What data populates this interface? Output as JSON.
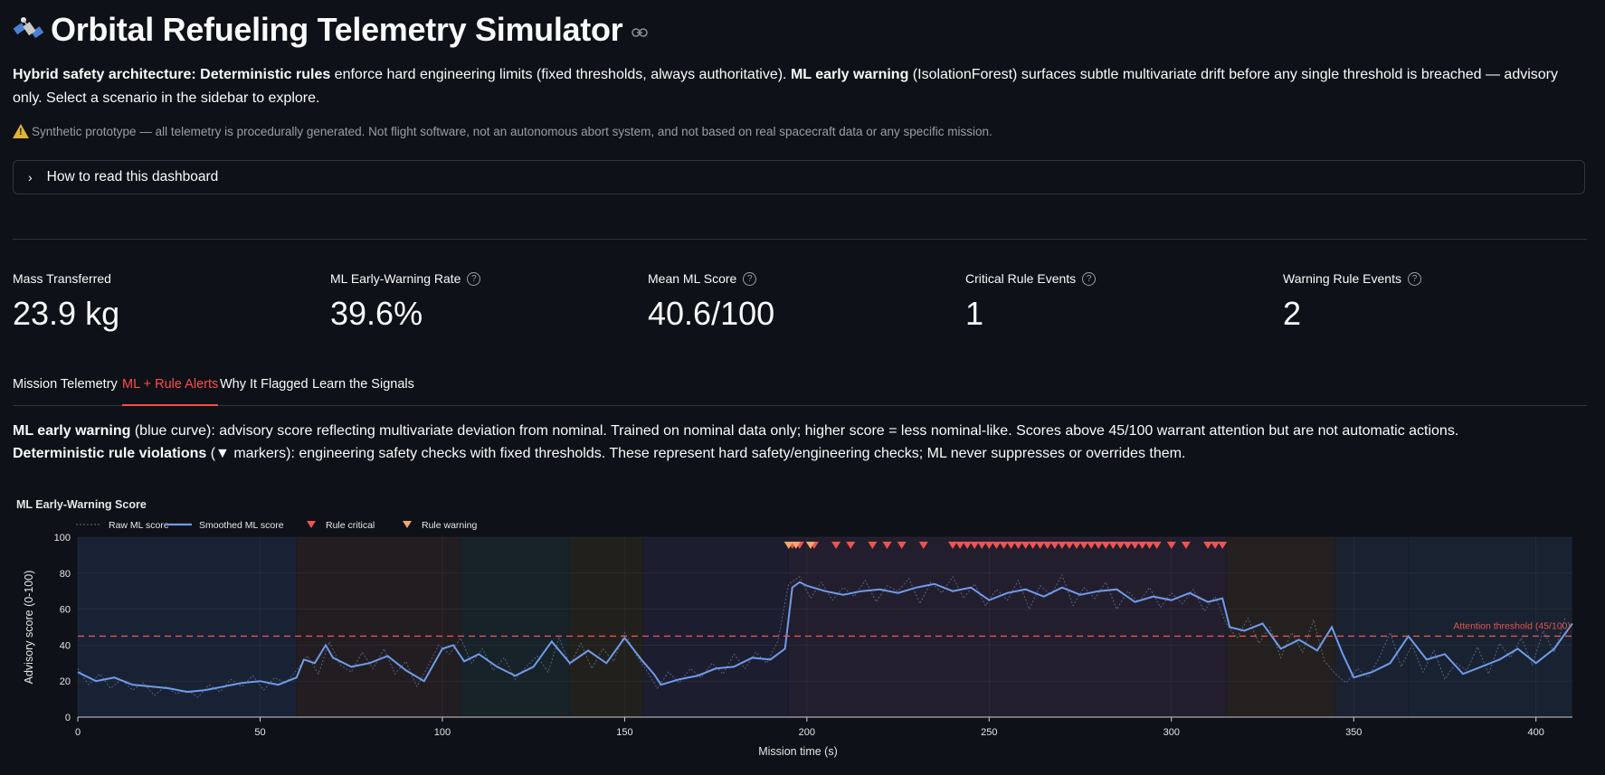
{
  "page": {
    "title": "Orbital Refueling Telemetry Simulator",
    "intro": {
      "b1": "Hybrid safety architecture: Deterministic rules",
      "t1": " enforce hard engineering limits (fixed thresholds, always authoritative). ",
      "b2": "ML early warning",
      "t2": " (IsolationForest) surfaces subtle multivariate drift before any single threshold is breached — advisory only. Select a scenario in the sidebar to explore."
    },
    "disclaimer": "Synthetic prototype — all telemetry is procedurally generated. Not flight software, not an autonomous abort system, and not based on real spacecraft data or any specific mission.",
    "expander_label": "How to read this dashboard"
  },
  "metrics": [
    {
      "label": "Mass Transferred",
      "value": "23.9 kg",
      "help": false
    },
    {
      "label": "ML Early-Warning Rate",
      "value": "39.6%",
      "help": true
    },
    {
      "label": "Mean ML Score",
      "value": "40.6/100",
      "help": true
    },
    {
      "label": "Critical Rule Events",
      "value": "1",
      "help": true
    },
    {
      "label": "Warning Rule Events",
      "value": "2",
      "help": true
    }
  ],
  "tabs": [
    {
      "label": "Mission Telemetry",
      "active": false
    },
    {
      "label": "ML + Rule Alerts",
      "active": true
    },
    {
      "label": "Why It Flagged",
      "active": false
    },
    {
      "label": "Learn the Signals",
      "active": false
    }
  ],
  "description": {
    "l1b": "ML early warning",
    "l1": " (blue curve): advisory score reflecting multivariate deviation from nominal. Trained on nominal data only; higher score = less nominal-like. Scores above 45/100 warrant attention but are not automatic actions.",
    "l2b": "Deterministic rule violations",
    "l2": " (▼ markers): engineering safety checks with fixed thresholds. These represent hard safety/engineering checks; ML never suppresses or overrides them."
  },
  "colors": {
    "raw": "#5b6a8a",
    "smoothed": "#6f9bea",
    "critical": "#ef5350",
    "warning": "#f4a76b",
    "threshold": "#e05555",
    "accent": "#ff4b4b"
  },
  "chart_data": {
    "type": "line",
    "title": "ML Early-Warning Score",
    "xlabel": "Mission time (s)",
    "ylabel": "Advisory score (0-100)",
    "xlim": [
      0,
      410
    ],
    "ylim": [
      0,
      100
    ],
    "xticks": [
      0,
      50,
      100,
      150,
      200,
      250,
      300,
      350,
      400
    ],
    "yticks": [
      0,
      20,
      40,
      60,
      80,
      100
    ],
    "legend": [
      "Raw ML score",
      "Smoothed ML score",
      "Rule critical",
      "Rule warning"
    ],
    "threshold": {
      "value": 45,
      "label": "Attention threshold (45/100)"
    },
    "phases": [
      {
        "x0": 0,
        "x1": 60,
        "color": "#1a2438"
      },
      {
        "x0": 60,
        "x1": 105,
        "color": "#241f21"
      },
      {
        "x0": 105,
        "x1": 135,
        "color": "#17242a"
      },
      {
        "x0": 135,
        "x1": 155,
        "color": "#24221b"
      },
      {
        "x0": 155,
        "x1": 195,
        "color": "#1e1e33"
      },
      {
        "x0": 195,
        "x1": 315,
        "color": "#262030"
      },
      {
        "x0": 315,
        "x1": 345,
        "color": "#26221f"
      },
      {
        "x0": 345,
        "x1": 365,
        "color": "#1b2535"
      },
      {
        "x0": 365,
        "x1": 410,
        "color": "#1a2532"
      }
    ],
    "series": [
      {
        "name": "Smoothed ML score",
        "x": [
          0,
          5,
          10,
          15,
          20,
          25,
          30,
          35,
          40,
          45,
          50,
          55,
          60,
          62,
          65,
          68,
          70,
          75,
          80,
          85,
          90,
          95,
          100,
          103,
          106,
          110,
          115,
          120,
          125,
          130,
          135,
          140,
          145,
          150,
          155,
          158,
          160,
          165,
          170,
          175,
          180,
          185,
          190,
          194,
          196,
          198,
          200,
          205,
          210,
          215,
          220,
          225,
          230,
          235,
          240,
          245,
          250,
          255,
          260,
          265,
          270,
          275,
          280,
          285,
          290,
          295,
          300,
          305,
          310,
          314,
          316,
          320,
          325,
          330,
          335,
          340,
          344,
          347,
          350,
          355,
          360,
          365,
          370,
          375,
          380,
          385,
          390,
          395,
          400,
          405,
          410
        ],
        "y": [
          25,
          20,
          22,
          18,
          17,
          16,
          14,
          15,
          17,
          19,
          20,
          18,
          22,
          32,
          30,
          40,
          33,
          28,
          30,
          34,
          26,
          20,
          38,
          40,
          31,
          35,
          28,
          23,
          28,
          42,
          30,
          37,
          30,
          44,
          31,
          24,
          18,
          21,
          23,
          27,
          28,
          33,
          32,
          38,
          72,
          75,
          73,
          70,
          68,
          70,
          71,
          69,
          72,
          74,
          70,
          72,
          65,
          69,
          71,
          67,
          72,
          68,
          70,
          71,
          64,
          67,
          65,
          69,
          64,
          66,
          50,
          48,
          52,
          38,
          43,
          37,
          50,
          35,
          22,
          25,
          30,
          45,
          32,
          35,
          24,
          28,
          32,
          38,
          30,
          38,
          52
        ]
      },
      {
        "name": "Raw ML score",
        "x": [
          0,
          3,
          6,
          9,
          12,
          15,
          18,
          21,
          24,
          27,
          30,
          33,
          36,
          39,
          42,
          45,
          48,
          51,
          54,
          57,
          60,
          63,
          66,
          69,
          72,
          75,
          78,
          81,
          84,
          87,
          90,
          93,
          96,
          99,
          102,
          105,
          108,
          111,
          114,
          117,
          120,
          123,
          126,
          129,
          132,
          135,
          138,
          141,
          144,
          147,
          150,
          153,
          156,
          159,
          162,
          165,
          168,
          171,
          174,
          177,
          180,
          183,
          186,
          189,
          192,
          195,
          198,
          201,
          204,
          207,
          210,
          213,
          216,
          219,
          222,
          225,
          228,
          231,
          234,
          237,
          240,
          243,
          246,
          249,
          252,
          255,
          258,
          261,
          264,
          267,
          270,
          273,
          276,
          279,
          282,
          285,
          288,
          291,
          294,
          297,
          300,
          303,
          306,
          309,
          312,
          315,
          318,
          321,
          324,
          327,
          330,
          333,
          336,
          339,
          342,
          345,
          348,
          351,
          354,
          357,
          360,
          363,
          366,
          369,
          372,
          375,
          378,
          381,
          384,
          387,
          390,
          393,
          396,
          399,
          402,
          405,
          408
        ],
        "y": [
          27,
          18,
          24,
          16,
          21,
          15,
          19,
          12,
          17,
          13,
          15,
          11,
          18,
          14,
          21,
          17,
          23,
          15,
          22,
          19,
          26,
          34,
          24,
          42,
          29,
          25,
          36,
          27,
          38,
          24,
          31,
          17,
          28,
          40,
          35,
          44,
          30,
          38,
          26,
          33,
          21,
          28,
          34,
          25,
          44,
          29,
          41,
          27,
          38,
          31,
          47,
          35,
          26,
          16,
          25,
          19,
          27,
          22,
          30,
          24,
          35,
          27,
          36,
          30,
          42,
          74,
          78,
          66,
          75,
          65,
          72,
          67,
          76,
          64,
          73,
          70,
          77,
          63,
          75,
          69,
          78,
          66,
          74,
          62,
          71,
          65,
          76,
          60,
          73,
          68,
          79,
          62,
          72,
          66,
          75,
          60,
          70,
          64,
          72,
          61,
          69,
          63,
          71,
          59,
          67,
          52,
          44,
          55,
          41,
          50,
          33,
          47,
          36,
          54,
          31,
          24,
          19,
          27,
          22,
          33,
          47,
          28,
          40,
          25,
          37,
          21,
          30,
          26,
          39,
          24,
          41,
          33,
          44,
          29,
          48,
          36,
          55
        ]
      }
    ],
    "rule_critical_x": [
      196,
      198,
      202,
      208,
      212,
      218,
      222,
      226,
      232,
      240,
      242,
      244,
      246,
      248,
      250,
      252,
      254,
      256,
      258,
      260,
      262,
      264,
      266,
      268,
      270,
      272,
      274,
      276,
      278,
      280,
      282,
      284,
      286,
      288,
      290,
      292,
      294,
      296,
      300,
      304,
      310,
      312,
      314
    ],
    "rule_warning_x": [
      195,
      197,
      201
    ]
  }
}
